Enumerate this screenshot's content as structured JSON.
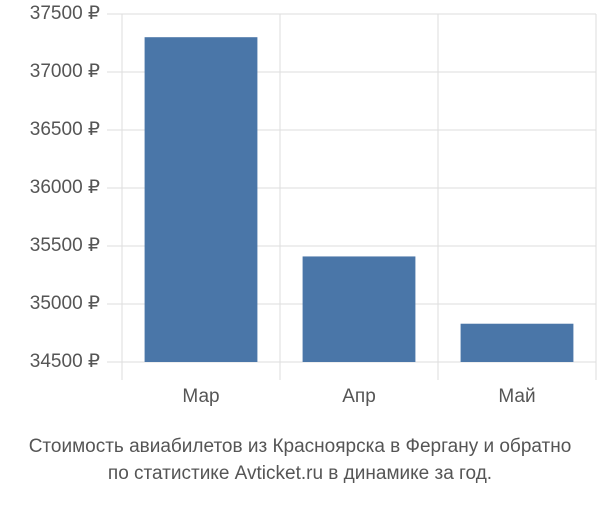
{
  "chart_data": {
    "type": "bar",
    "title": [
      "Стоимость авиабилетов из Красноярска в Фергану и обратно",
      "по статистике Avticket.ru в динамике за год."
    ],
    "categories": [
      "Мар",
      "Апр",
      "Май"
    ],
    "values": [
      37300,
      35410,
      34830
    ],
    "color": "#4a76a8",
    "ylim": [
      34500,
      37500
    ],
    "yticks": [
      {
        "value": 34500,
        "label": "34500 ₽"
      },
      {
        "value": 35000,
        "label": "35000 ₽"
      },
      {
        "value": 35500,
        "label": "35500 ₽"
      },
      {
        "value": 36000,
        "label": "36000 ₽"
      },
      {
        "value": 36500,
        "label": "36500 ₽"
      },
      {
        "value": 37000,
        "label": "37000 ₽"
      },
      {
        "value": 37500,
        "label": "37500 ₽"
      }
    ],
    "grid": true
  }
}
